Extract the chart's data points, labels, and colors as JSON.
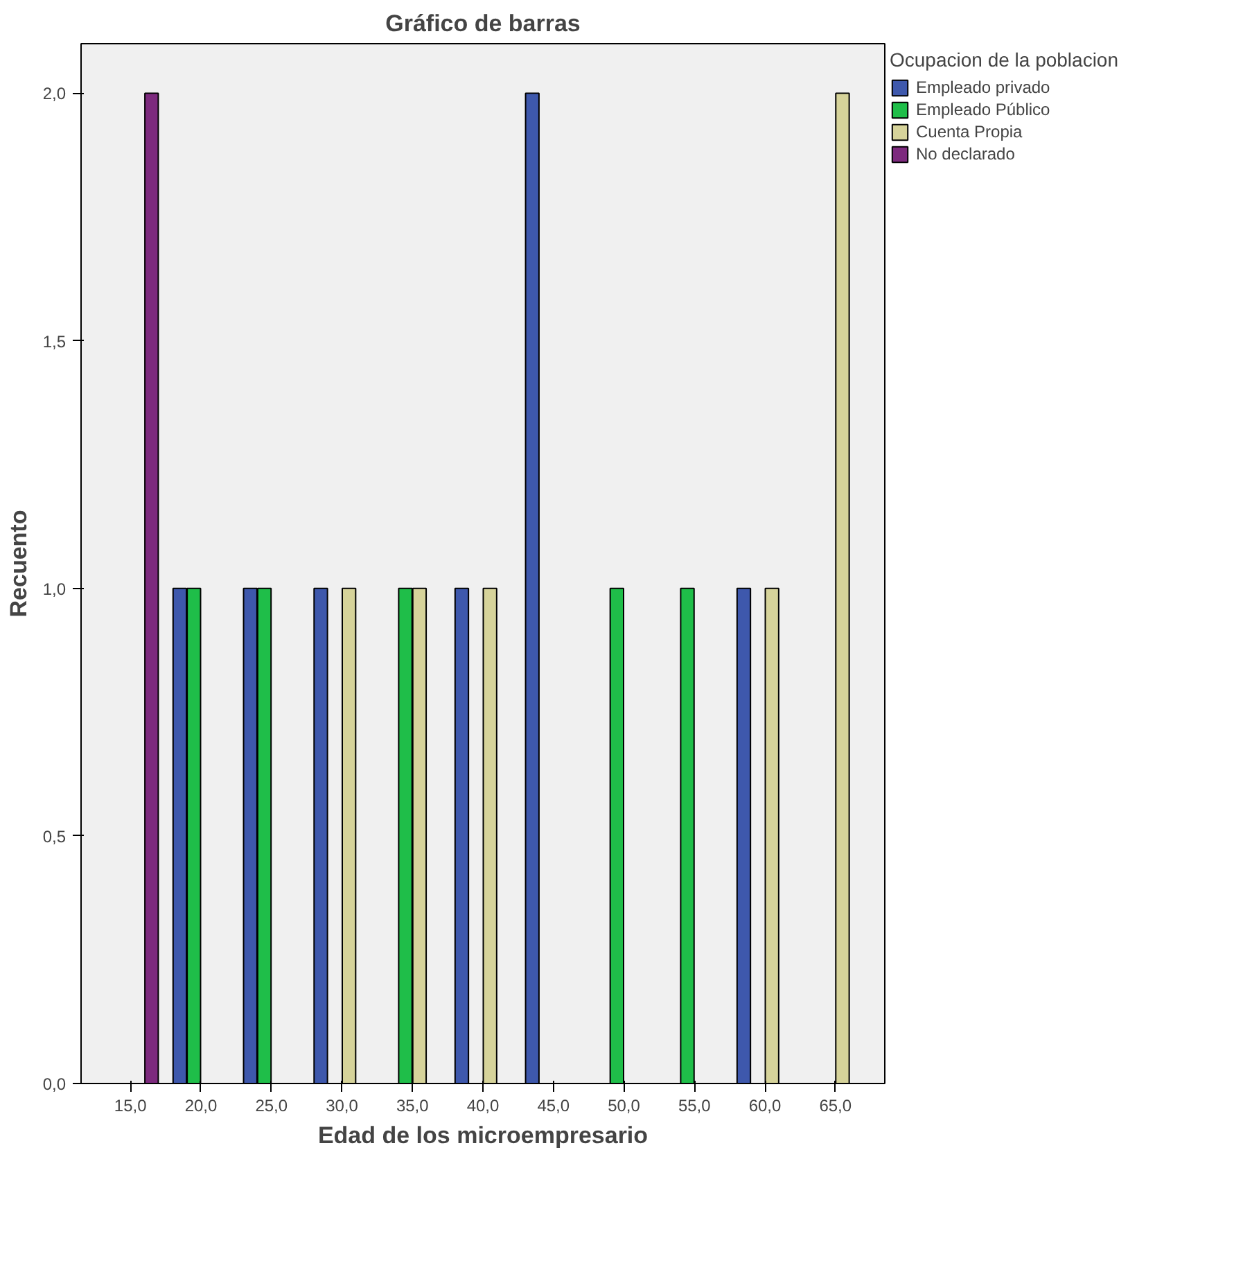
{
  "chart_data": {
    "type": "bar",
    "title": "Gráfico de barras",
    "xlabel": "Edad de los microempresario",
    "ylabel": "Recuento",
    "legend_title": "Ocupacion de la poblacion",
    "legend": "right",
    "categories": [
      "15,0",
      "20,0",
      "25,0",
      "30,0",
      "35,0",
      "40,0",
      "45,0",
      "50,0",
      "55,0",
      "60,0",
      "65,0"
    ],
    "series": [
      {
        "name": "Empleado privado",
        "color": "#3e58ac",
        "values": [
          null,
          1,
          1,
          1,
          null,
          1,
          2,
          null,
          null,
          1,
          null
        ]
      },
      {
        "name": "Empleado Público",
        "color": "#1fbe49",
        "values": [
          null,
          1,
          1,
          null,
          1,
          null,
          null,
          1,
          1,
          null,
          null
        ]
      },
      {
        "name": "Cuenta Propia",
        "color": "#d6d39a",
        "values": [
          null,
          null,
          null,
          1,
          1,
          1,
          null,
          null,
          null,
          1,
          2
        ]
      },
      {
        "name": "No declarado",
        "color": "#7d2a7e",
        "values": [
          2,
          null,
          null,
          null,
          null,
          null,
          null,
          null,
          null,
          null,
          null
        ]
      }
    ],
    "ylim": [
      0,
      2.1
    ],
    "yticks": [
      {
        "value": 0,
        "label": "0,0"
      },
      {
        "value": 0.5,
        "label": "0,5"
      },
      {
        "value": 1,
        "label": "1,0"
      },
      {
        "value": 1.5,
        "label": "1,5"
      },
      {
        "value": 2,
        "label": "2,0"
      }
    ],
    "grid": false
  }
}
